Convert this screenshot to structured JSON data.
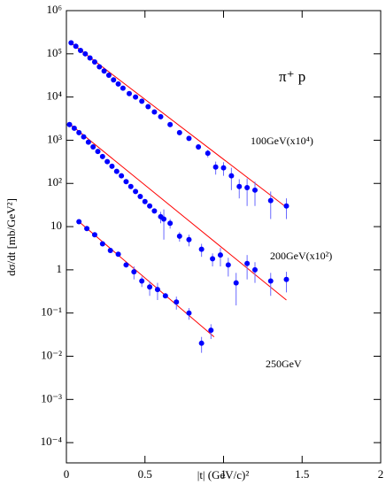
{
  "chart_data": {
    "type": "scatter",
    "ylabel": "dσ/dt [mb/GeV²]",
    "xlabel": "|t| (GeV/c)²",
    "annotations": [
      "π⁺ p",
      "100GeV(x10⁴)",
      "200GeV(x10²)",
      "250GeV"
    ],
    "xlim": [
      0,
      2
    ],
    "xticks": [
      0,
      0.5,
      1,
      1.5,
      2
    ],
    "ylim": [
      3.4e-05,
      1000000
    ],
    "log_y": true,
    "yticks": [
      {
        "value": 0.0001,
        "label": "10⁻⁴"
      },
      {
        "value": 0.001,
        "label": "10⁻³"
      },
      {
        "value": 0.01,
        "label": "10⁻²"
      },
      {
        "value": 0.1,
        "label": "10⁻¹"
      },
      1,
      10,
      {
        "value": 100,
        "label": "10²"
      },
      {
        "value": 1000,
        "label": "10³"
      },
      {
        "value": 10000,
        "label": "10⁴"
      },
      {
        "value": 100000,
        "label": "10⁵"
      },
      {
        "value": 1000000,
        "label": "10⁶"
      }
    ],
    "series": [
      {
        "color": "#0000ff",
        "x": [
          0.03,
          0.06,
          0.09,
          0.12,
          0.15,
          0.18,
          0.21,
          0.24,
          0.27,
          0.3,
          0.33,
          0.36,
          0.4,
          0.44,
          0.48,
          0.52,
          0.56,
          0.6,
          0.66,
          0.72,
          0.78,
          0.84,
          0.9,
          0.95,
          1.0,
          1.05,
          1.1,
          1.15,
          1.2,
          1.3,
          1.4
        ],
        "values": [
          180000,
          150000,
          120000,
          100000,
          80000,
          65000,
          50000,
          40000,
          32000,
          25000,
          20000,
          16000,
          12000,
          10000,
          8000,
          6000,
          4500,
          3500,
          2300,
          1500,
          1100,
          700,
          500,
          240,
          230,
          150,
          85,
          80,
          70,
          40,
          30
        ],
        "errors": [
          null,
          null,
          null,
          null,
          null,
          null,
          null,
          null,
          null,
          null,
          null,
          null,
          null,
          null,
          null,
          null,
          null,
          null,
          null,
          null,
          null,
          100,
          100,
          80,
          80,
          80,
          40,
          50,
          40,
          25,
          15
        ]
      },
      {
        "color": "#0000ff",
        "x": [
          0.02,
          0.05,
          0.08,
          0.11,
          0.14,
          0.17,
          0.2,
          0.23,
          0.26,
          0.29,
          0.32,
          0.35,
          0.38,
          0.41,
          0.44,
          0.47,
          0.5,
          0.53,
          0.56,
          0.6,
          0.62,
          0.66,
          0.72,
          0.78,
          0.86,
          0.93,
          0.98,
          1.03,
          1.08,
          1.15,
          1.2,
          1.3,
          1.4
        ],
        "values": [
          2300,
          1900,
          1500,
          1200,
          900,
          700,
          550,
          420,
          320,
          250,
          190,
          150,
          110,
          85,
          65,
          50,
          38,
          30,
          23,
          17,
          15,
          12,
          6,
          5,
          3,
          1.8,
          2.2,
          1.3,
          0.5,
          1.4,
          1.0,
          0.55,
          0.6
        ],
        "errors": [
          null,
          null,
          null,
          null,
          null,
          null,
          null,
          null,
          null,
          null,
          null,
          null,
          null,
          null,
          null,
          null,
          null,
          null,
          null,
          5,
          10,
          3,
          1.5,
          1.5,
          1,
          0.6,
          1,
          0.6,
          0.35,
          0.8,
          0.5,
          0.3,
          0.3
        ]
      },
      {
        "color": "#0000ff",
        "x": [
          0.08,
          0.13,
          0.18,
          0.23,
          0.28,
          0.33,
          0.38,
          0.43,
          0.48,
          0.53,
          0.58,
          0.63,
          0.7,
          0.78,
          0.86,
          0.92
        ],
        "values": [
          13,
          9,
          6.5,
          4,
          2.8,
          2.3,
          1.3,
          0.9,
          0.55,
          0.4,
          0.35,
          0.25,
          0.18,
          0.1,
          0.02,
          0.04
        ],
        "errors": [
          null,
          null,
          null,
          null,
          null,
          null,
          null,
          0.3,
          0.15,
          0.15,
          0.15,
          null,
          0.06,
          0.03,
          0.008,
          0.015
        ]
      }
    ],
    "fits": [
      {
        "color": "#ff0000",
        "x": [
          0.02,
          1.4
        ],
        "y": [
          190000,
          28
        ]
      },
      {
        "color": "#ff0000",
        "x": [
          0.02,
          1.4
        ],
        "y": [
          2400,
          0.2
        ]
      },
      {
        "color": "#ff0000",
        "x": [
          0.08,
          0.94
        ],
        "y": [
          13,
          0.028
        ]
      }
    ]
  }
}
